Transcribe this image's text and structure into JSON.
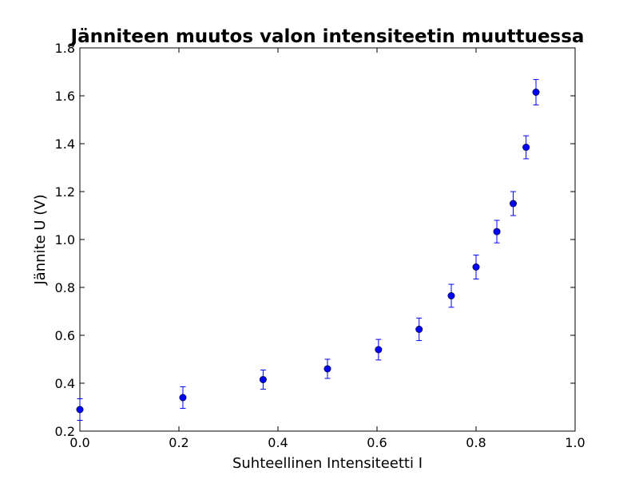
{
  "chart_data": {
    "type": "scatter",
    "title": "Jänniteen muutos valon intensiteetin muuttuessa",
    "xlabel": "Suhteellinen Intensiteetti I",
    "ylabel": "Jännite U (V)",
    "xlim": [
      0.0,
      1.0
    ],
    "ylim": [
      0.2,
      1.8
    ],
    "xticks": [
      "0.0",
      "0.2",
      "0.4",
      "0.6",
      "0.8",
      "1.0"
    ],
    "yticks": [
      "0.2",
      "0.4",
      "0.6",
      "0.8",
      "1.0",
      "1.2",
      "1.4",
      "1.6",
      "1.8"
    ],
    "grid": false,
    "marker_color": "#0000ff",
    "points": [
      {
        "x": 0.0,
        "y": 0.29,
        "err": 0.045
      },
      {
        "x": 0.208,
        "y": 0.34,
        "err": 0.045
      },
      {
        "x": 0.37,
        "y": 0.415,
        "err": 0.04
      },
      {
        "x": 0.5,
        "y": 0.46,
        "err": 0.04
      },
      {
        "x": 0.603,
        "y": 0.54,
        "err": 0.043
      },
      {
        "x": 0.685,
        "y": 0.625,
        "err": 0.047
      },
      {
        "x": 0.75,
        "y": 0.765,
        "err": 0.048
      },
      {
        "x": 0.8,
        "y": 0.885,
        "err": 0.05
      },
      {
        "x": 0.842,
        "y": 1.033,
        "err": 0.047
      },
      {
        "x": 0.875,
        "y": 1.15,
        "err": 0.05
      },
      {
        "x": 0.901,
        "y": 1.385,
        "err": 0.048
      },
      {
        "x": 0.921,
        "y": 1.615,
        "err": 0.053
      }
    ]
  }
}
